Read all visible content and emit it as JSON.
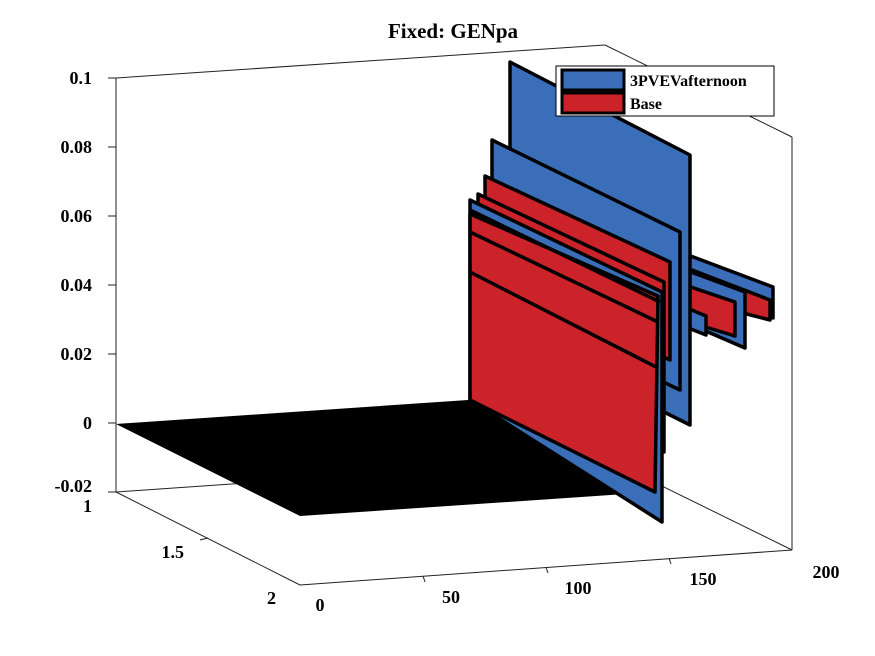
{
  "chart_data": {
    "type": "3d-ribbon",
    "title": "Fixed: GENpa",
    "colors": {
      "series_1": "#3A6EB8",
      "series_2": "#CC2229",
      "floor": "#000000"
    },
    "legend": {
      "placement": "top-right",
      "entries": [
        "3PVEVafternoon",
        "Base"
      ]
    },
    "x_axis": {
      "ticks": [
        "0",
        "50",
        "100",
        "150",
        "200"
      ],
      "range": [
        0,
        200
      ]
    },
    "y_axis": {
      "ticks": [
        "1",
        "1.5",
        "2"
      ],
      "range": [
        1,
        2
      ]
    },
    "z_axis": {
      "ticks": [
        "0.1",
        "0.08",
        "0.06",
        "0.04",
        "0.02",
        "0",
        "-0.02"
      ],
      "range": [
        -0.02,
        0.1
      ]
    },
    "series": [
      {
        "name": "3PVEVafternoon",
        "color": "#3A6EB8",
        "x": [
          0,
          100,
          101,
          110,
          120,
          130,
          140,
          150,
          160,
          170,
          180,
          190,
          200
        ],
        "z": [
          0,
          0,
          0.1,
          0.082,
          0.065,
          0.06,
          0.058,
          0.057,
          0.046,
          0.04,
          0.035,
          0.03,
          0.028
        ]
      },
      {
        "name": "Base",
        "color": "#CC2229",
        "x": [
          0,
          100,
          101,
          110,
          120,
          130,
          140,
          150,
          160,
          170,
          180,
          190,
          200
        ],
        "z": [
          0,
          0,
          0.06,
          0.058,
          0.055,
          0.052,
          0.046,
          0.044,
          0.04,
          0.036,
          0.033,
          0.03,
          0.028
        ]
      }
    ]
  }
}
